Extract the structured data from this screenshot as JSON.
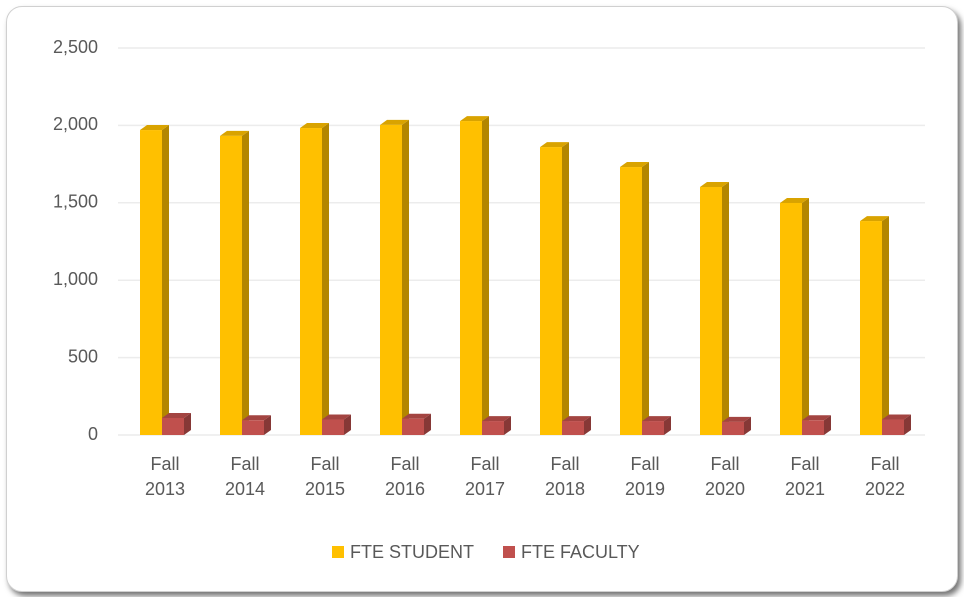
{
  "chart_data": {
    "type": "bar3d",
    "categories": [
      "Fall 2013",
      "Fall 2014",
      "Fall 2015",
      "Fall 2016",
      "Fall 2017",
      "Fall 2018",
      "Fall 2019",
      "Fall 2020",
      "Fall 2021",
      "Fall 2022"
    ],
    "series": [
      {
        "name": "FTE STUDENT",
        "color": "#FFC000",
        "values": [
          1970,
          1932,
          1983,
          2003,
          2028,
          1860,
          1731,
          1602,
          1499,
          1382
        ]
      },
      {
        "name": "FTE FACULTY",
        "color": "#C0504D",
        "values": [
          110,
          95,
          100,
          105,
          90,
          90,
          90,
          85,
          95,
          100
        ]
      }
    ],
    "ylim": [
      0,
      2500
    ],
    "yticks": [
      0,
      500,
      {
        "value": 1000,
        "label": "1,000"
      },
      {
        "value": 1500,
        "label": "1,500"
      },
      {
        "value": 2000,
        "label": "2,000"
      },
      {
        "value": 2500,
        "label": "2,500"
      }
    ],
    "grid": true,
    "legend": "bottom"
  }
}
